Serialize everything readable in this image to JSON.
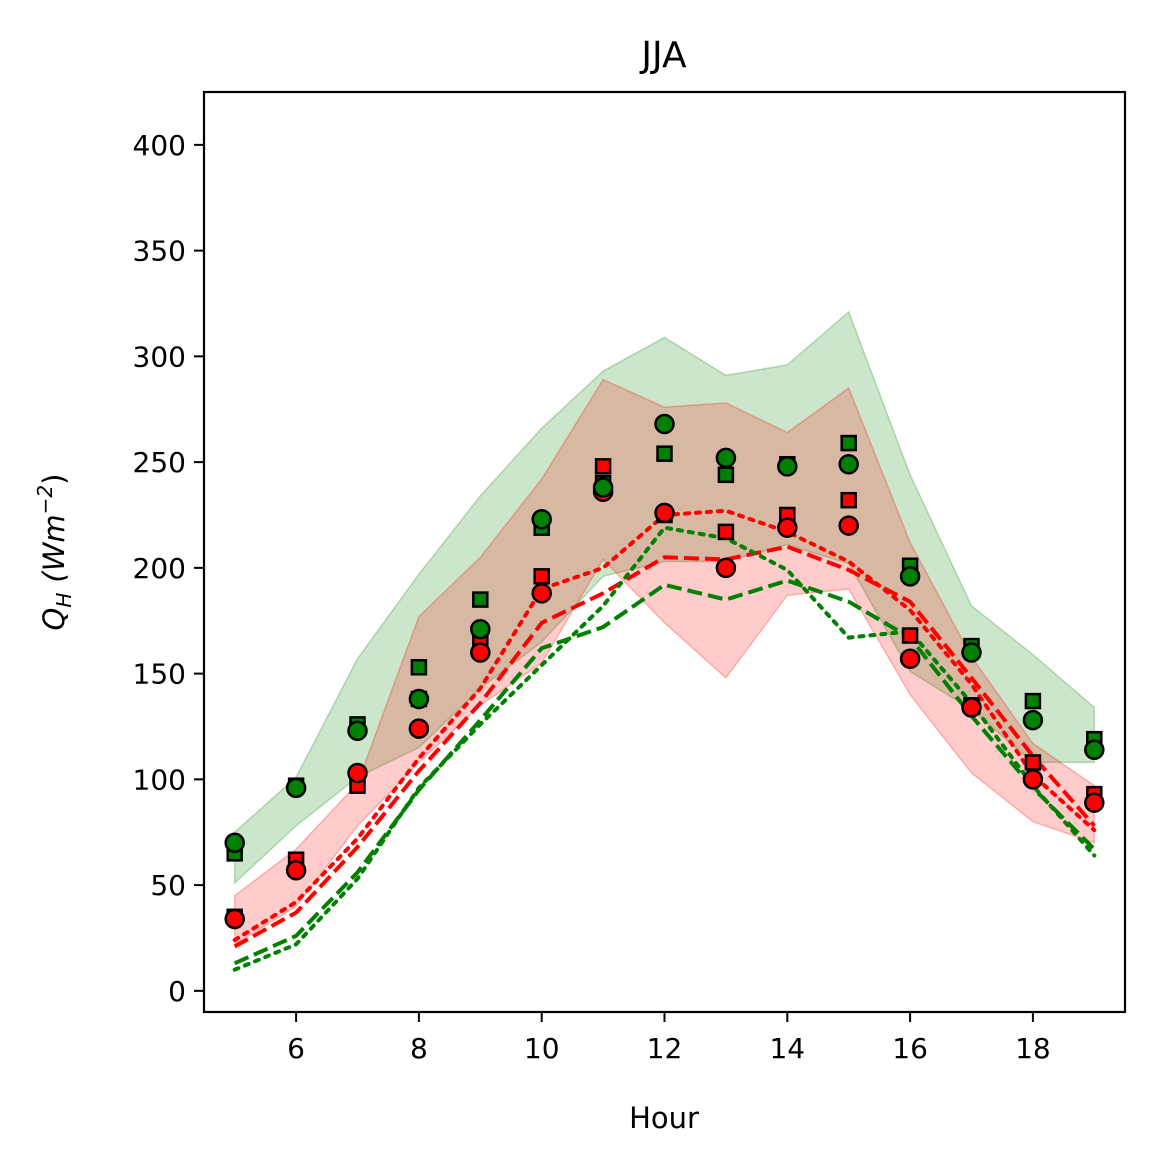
{
  "chart_data": {
    "type": "line",
    "title": "JJA",
    "xlabel": "Hour",
    "ylabel_base": "Q",
    "ylabel_sub": "H",
    "ylabel_units_pre": "(Wm",
    "ylabel_units_sup": "−2",
    "ylabel_units_post": ")",
    "xlim": [
      4.5,
      19.5
    ],
    "ylim": [
      -10,
      425
    ],
    "x_ticks": [
      6,
      8,
      10,
      12,
      14,
      16,
      18
    ],
    "x_tick_labels": [
      "6",
      "8",
      "10",
      "12",
      "14",
      "16",
      "18"
    ],
    "y_ticks": [
      0,
      50,
      100,
      150,
      200,
      250,
      300,
      350,
      400
    ],
    "y_tick_labels": [
      "0",
      "50",
      "100",
      "150",
      "200",
      "250",
      "300",
      "350",
      "400"
    ],
    "grid": false,
    "hours": [
      5,
      6,
      7,
      8,
      9,
      10,
      11,
      12,
      13,
      14,
      15,
      16,
      17,
      18,
      19
    ],
    "bands": [
      {
        "color": "#008000",
        "opacity": 0.2,
        "upper": [
          75,
          101,
          157,
          197,
          234,
          266,
          293,
          309,
          291,
          296,
          321,
          244,
          182,
          159,
          134
        ],
        "lower": [
          51,
          78,
          101,
          115,
          143,
          165,
          196,
          203,
          203,
          211,
          202,
          151,
          133,
          108,
          108
        ]
      },
      {
        "color": "#ff0000",
        "opacity": 0.2,
        "upper": [
          45,
          67,
          98,
          177,
          205,
          242,
          289,
          276,
          278,
          264,
          285,
          212,
          158,
          117,
          97
        ],
        "lower": [
          22,
          40,
          78,
          108,
          135,
          155,
          204,
          174,
          148,
          187,
          190,
          140,
          103,
          80,
          70
        ]
      }
    ],
    "series": [
      {
        "color": "#ff0000",
        "style": "dashed",
        "values": [
          21,
          37,
          68,
          104,
          136,
          174,
          188,
          205,
          204,
          210,
          199,
          184,
          148,
          111,
          78
        ]
      },
      {
        "color": "#ff0000",
        "style": "dotted",
        "values": [
          24,
          42,
          72,
          110,
          143,
          190,
          200,
          225,
          227,
          217,
          203,
          180,
          145,
          102,
          76
        ]
      },
      {
        "color": "#008000",
        "style": "dashed",
        "values": [
          13,
          26,
          56,
          95,
          128,
          162,
          172,
          192,
          185,
          194,
          184,
          167,
          130,
          96,
          67
        ]
      },
      {
        "color": "#008000",
        "style": "dotted",
        "values": [
          10,
          22,
          53,
          96,
          126,
          154,
          182,
          219,
          214,
          199,
          167,
          170,
          136,
          97,
          64
        ]
      }
    ],
    "markers": [
      {
        "color": "#ff0000",
        "shape": "square",
        "values": [
          35,
          62,
          97,
          138,
          165,
          196,
          248,
          225,
          217,
          225,
          232,
          168,
          135,
          108,
          93
        ]
      },
      {
        "color": "#ff0000",
        "shape": "circle",
        "values": [
          34,
          57,
          103,
          124,
          160,
          188,
          236,
          226,
          200,
          219,
          220,
          157,
          134,
          100,
          89
        ]
      },
      {
        "color": "#008000",
        "shape": "square",
        "values": [
          65,
          97,
          126,
          153,
          185,
          219,
          240,
          254,
          244,
          249,
          259,
          201,
          163,
          137,
          119
        ]
      },
      {
        "color": "#008000",
        "shape": "circle",
        "values": [
          70,
          96,
          123,
          138,
          171,
          223,
          238,
          268,
          252,
          248,
          249,
          196,
          160,
          128,
          114
        ]
      }
    ]
  }
}
